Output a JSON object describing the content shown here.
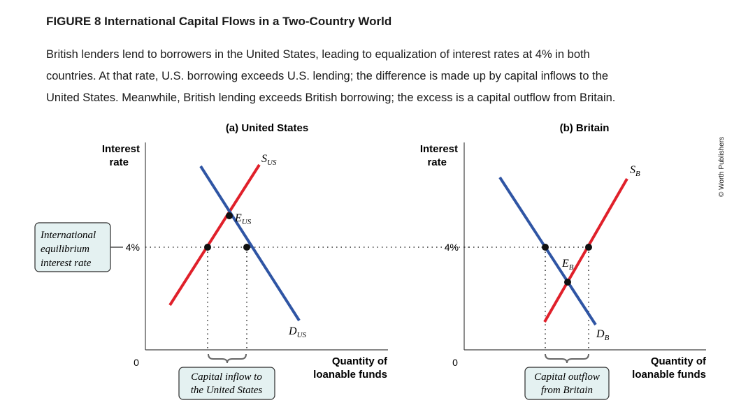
{
  "figure": {
    "title": "FIGURE 8 International Capital Flows in a Two-Country World",
    "caption_lines": [
      "British lenders lend to borrowers in the United States, leading to equalization of interest rates at 4% in both",
      "countries. At that rate, U.S. borrowing exceeds U.S. lending; the difference is made up by capital inflows to the",
      "United States. Meanwhile, British lending exceeds British borrowing; the excess is a capital outflow from Britain."
    ],
    "credit": "© Worth Publishers"
  },
  "labels": {
    "ylabel_line1": "Interest",
    "ylabel_line2": "rate",
    "xlabel_line1": "Quantity of",
    "xlabel_line2": "loanable funds",
    "origin": "0",
    "rate_tick": "4%",
    "intl_box": [
      "International",
      "equilibrium",
      "interest rate"
    ]
  },
  "chart_data": [
    {
      "type": "line",
      "title": "(a) United States",
      "xlabel": "Quantity of loanable funds",
      "ylabel": "Interest rate",
      "y_tick": "4%",
      "series": [
        {
          "name": "S",
          "sub": "US",
          "color": "#e0202a"
        },
        {
          "name": "D",
          "sub": "US",
          "color": "#2f55a4"
        }
      ],
      "points": [
        {
          "name": "E",
          "sub": "US"
        }
      ],
      "annotation": [
        "Capital inflow to",
        "the United States"
      ]
    },
    {
      "type": "line",
      "title": "(b) Britain",
      "xlabel": "Quantity of loanable funds",
      "ylabel": "Interest rate",
      "y_tick": "4%",
      "series": [
        {
          "name": "S",
          "sub": "B",
          "color": "#e0202a"
        },
        {
          "name": "D",
          "sub": "B",
          "color": "#2f55a4"
        }
      ],
      "points": [
        {
          "name": "E",
          "sub": "B"
        }
      ],
      "annotation": [
        "Capital outflow",
        "from Britain"
      ]
    }
  ],
  "colors": {
    "supply": "#e0202a",
    "demand": "#2f55a4",
    "box_fill": "#e4f1f1",
    "box_stroke": "#2b2b2b"
  }
}
